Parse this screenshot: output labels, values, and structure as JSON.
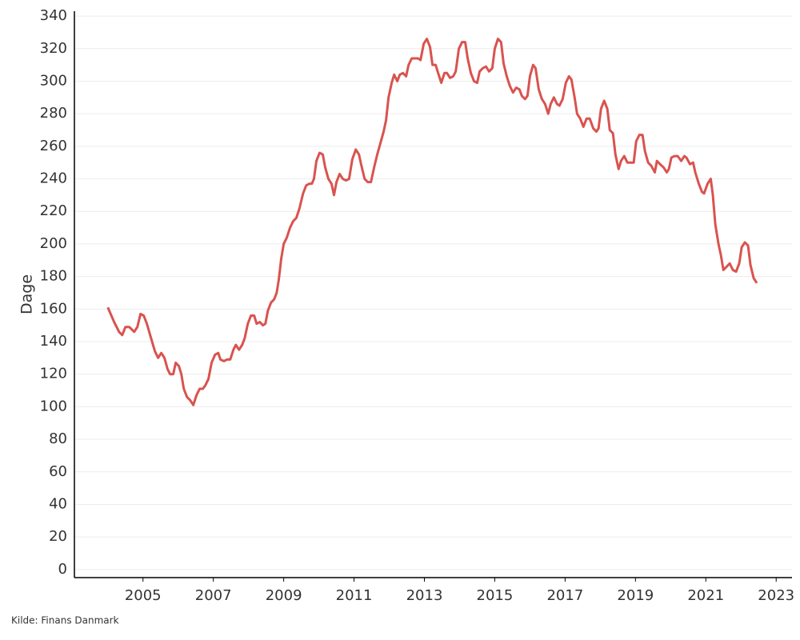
{
  "chart_data": {
    "type": "line",
    "y_label": "Dage",
    "source": "Kilde: Finans Danmark",
    "xlim": [
      2003.05,
      2023.45
    ],
    "xticks": [
      2005,
      2007,
      2009,
      2011,
      2013,
      2015,
      2017,
      2019,
      2021,
      2023
    ],
    "ylim": [
      -5,
      343
    ],
    "yticks": [
      0,
      20,
      40,
      60,
      80,
      100,
      120,
      140,
      160,
      180,
      200,
      220,
      240,
      260,
      280,
      300,
      320,
      340
    ],
    "grid": true,
    "x": [
      2004.0,
      2004.18,
      2004.32,
      2004.41,
      2004.5,
      2004.61,
      2004.75,
      2004.84,
      2004.93,
      2005.02,
      2005.11,
      2005.23,
      2005.34,
      2005.43,
      2005.52,
      2005.61,
      2005.7,
      2005.77,
      2005.86,
      2005.93,
      2006.02,
      2006.09,
      2006.16,
      2006.25,
      2006.34,
      2006.43,
      2006.52,
      2006.61,
      2006.7,
      2006.77,
      2006.86,
      2006.95,
      2007.05,
      2007.14,
      2007.2,
      2007.3,
      2007.39,
      2007.48,
      2007.57,
      2007.64,
      2007.73,
      2007.82,
      2007.89,
      2007.98,
      2008.07,
      2008.16,
      2008.23,
      2008.32,
      2008.41,
      2008.48,
      2008.55,
      2008.64,
      2008.73,
      2008.8,
      2008.86,
      2008.93,
      2009.0,
      2009.09,
      2009.18,
      2009.27,
      2009.36,
      2009.45,
      2009.55,
      2009.64,
      2009.73,
      2009.8,
      2009.86,
      2009.93,
      2010.02,
      2010.11,
      2010.18,
      2010.27,
      2010.36,
      2010.43,
      2010.5,
      2010.59,
      2010.68,
      2010.77,
      2010.86,
      2010.95,
      2011.05,
      2011.14,
      2011.2,
      2011.3,
      2011.39,
      2011.48,
      2011.57,
      2011.66,
      2011.75,
      2011.84,
      2011.91,
      2011.98,
      2012.07,
      2012.14,
      2012.23,
      2012.3,
      2012.39,
      2012.48,
      2012.55,
      2012.64,
      2012.73,
      2012.82,
      2012.89,
      2012.98,
      2013.07,
      2013.16,
      2013.23,
      2013.32,
      2013.39,
      2013.48,
      2013.57,
      2013.64,
      2013.73,
      2013.82,
      2013.89,
      2013.98,
      2014.07,
      2014.16,
      2014.23,
      2014.32,
      2014.41,
      2014.5,
      2014.57,
      2014.66,
      2014.75,
      2014.84,
      2014.93,
      2015.0,
      2015.09,
      2015.18,
      2015.25,
      2015.34,
      2015.43,
      2015.52,
      2015.61,
      2015.7,
      2015.77,
      2015.86,
      2015.93,
      2016.0,
      2016.09,
      2016.16,
      2016.25,
      2016.34,
      2016.43,
      2016.52,
      2016.59,
      2016.68,
      2016.77,
      2016.84,
      2016.93,
      2017.02,
      2017.11,
      2017.18,
      2017.27,
      2017.34,
      2017.43,
      2017.52,
      2017.61,
      2017.7,
      2017.8,
      2017.89,
      2017.95,
      2018.02,
      2018.11,
      2018.2,
      2018.27,
      2018.36,
      2018.43,
      2018.52,
      2018.59,
      2018.68,
      2018.77,
      2018.86,
      2018.95,
      2019.02,
      2019.11,
      2019.2,
      2019.27,
      2019.36,
      2019.45,
      2019.55,
      2019.61,
      2019.7,
      2019.8,
      2019.89,
      2019.95,
      2020.02,
      2020.11,
      2020.2,
      2020.3,
      2020.39,
      2020.45,
      2020.55,
      2020.64,
      2020.7,
      2020.8,
      2020.89,
      2020.95,
      2021.05,
      2021.14,
      2021.2,
      2021.27,
      2021.36,
      2021.43,
      2021.5,
      2021.59,
      2021.68,
      2021.77,
      2021.86,
      2021.95,
      2022.02,
      2022.11,
      2022.2,
      2022.27,
      2022.36,
      2022.45
    ],
    "series": [
      {
        "color": "#d9534f",
        "values": [
          161,
          152,
          146,
          144,
          149,
          149,
          146,
          149,
          157,
          156,
          151,
          142,
          134,
          130,
          133,
          130,
          123,
          120,
          120,
          127,
          125,
          120,
          111,
          106,
          104,
          101,
          107,
          111,
          111,
          113,
          117,
          127,
          132,
          133,
          129,
          128,
          129,
          129,
          135,
          138,
          135,
          138,
          142,
          151,
          156,
          156,
          151,
          152,
          150,
          151,
          159,
          164,
          166,
          170,
          178,
          191,
          200,
          204,
          210,
          214,
          216,
          222,
          231,
          236,
          237,
          237,
          240,
          251,
          256,
          255,
          247,
          240,
          237,
          230,
          238,
          243,
          240,
          239,
          240,
          252,
          258,
          255,
          249,
          240,
          238,
          238,
          247,
          255,
          262,
          269,
          276,
          290,
          299,
          304,
          300,
          304,
          305,
          303,
          310,
          314,
          314,
          314,
          313,
          323,
          326,
          321,
          310,
          310,
          305,
          299,
          305,
          305,
          302,
          303,
          306,
          320,
          324,
          324,
          314,
          305,
          300,
          299,
          306,
          308,
          309,
          306,
          308,
          320,
          326,
          324,
          311,
          303,
          297,
          293,
          296,
          295,
          291,
          289,
          291,
          303,
          310,
          308,
          295,
          289,
          286,
          280,
          286,
          290,
          286,
          285,
          289,
          299,
          303,
          301,
          290,
          280,
          277,
          272,
          277,
          277,
          271,
          269,
          271,
          283,
          288,
          283,
          270,
          268,
          255,
          246,
          251,
          254,
          250,
          250,
          250,
          263,
          267,
          267,
          257,
          250,
          248,
          244,
          251,
          249,
          247,
          244,
          246,
          253,
          254,
          254,
          251,
          254,
          253,
          249,
          250,
          244,
          237,
          232,
          231,
          237,
          240,
          230,
          212,
          200,
          193,
          184,
          186,
          188,
          184,
          183,
          188,
          198,
          201,
          199,
          187,
          179,
          176
        ]
      }
    ]
  }
}
